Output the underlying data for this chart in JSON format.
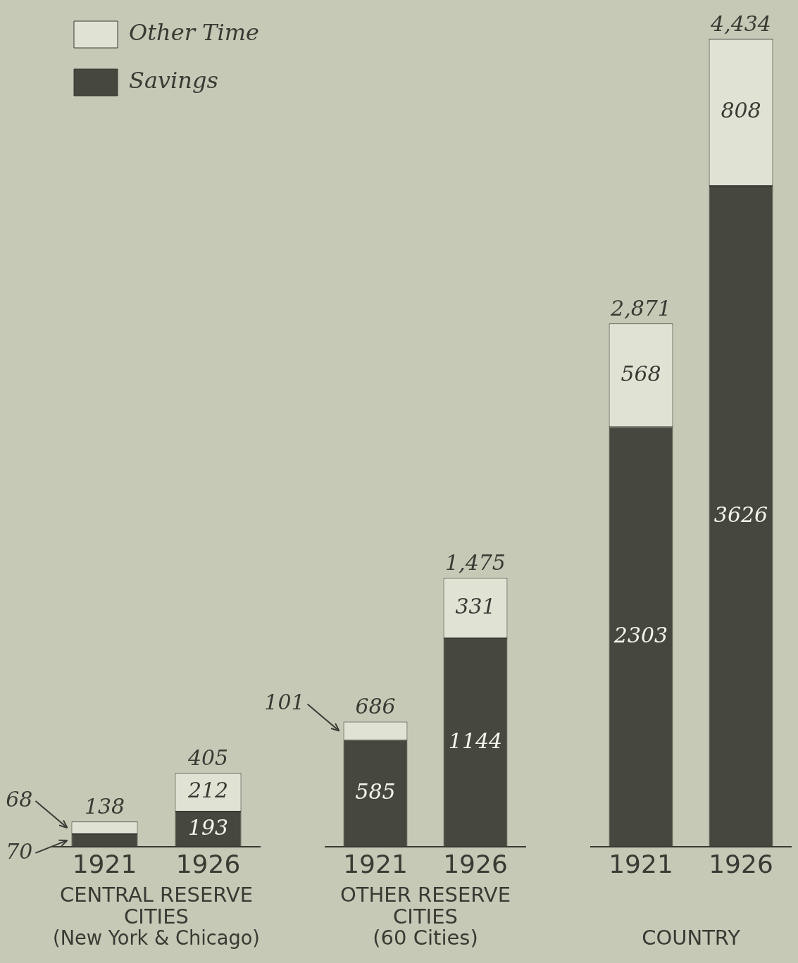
{
  "chart_data": [
    {
      "type": "bar",
      "stacked": true,
      "categories": [
        "1921",
        "1926"
      ],
      "xlabel": "CENTRAL RESERVE\nCITIES\n(New York & Chicago)",
      "tick_labels": "x",
      "grid": false,
      "legend": "top left",
      "data_labels": true,
      "totals": [
        "138",
        "405"
      ],
      "series": [
        {
          "name": "Savings",
          "color": "#46473f",
          "values": [
            70,
            193
          ]
        },
        {
          "name": "Other Time",
          "color": "#e0e2d4",
          "values": [
            68,
            212
          ]
        }
      ]
    },
    {
      "type": "bar",
      "stacked": true,
      "categories": [
        "1921",
        "1926"
      ],
      "xlabel": "OTHER RESERVE\nCITIES\n(60 Cities)",
      "tick_labels": "x",
      "grid": false,
      "data_labels": true,
      "totals": [
        "686",
        "1,475"
      ],
      "series": [
        {
          "color": "#46473f",
          "values": [
            585,
            1144
          ]
        },
        {
          "color": "#e0e2d4",
          "values": [
            101,
            331
          ]
        }
      ]
    },
    {
      "type": "bar",
      "stacked": true,
      "categories": [
        "1921",
        "1926"
      ],
      "xlabel": "COUNTRY",
      "tick_labels": "x",
      "grid": false,
      "data_labels": true,
      "totals": [
        "2,871",
        "4,434"
      ],
      "series": [
        {
          "color": "#46473f",
          "values": [
            2303,
            3626
          ]
        },
        {
          "color": "#e0e2d4",
          "values": [
            568,
            808
          ]
        }
      ]
    }
  ]
}
